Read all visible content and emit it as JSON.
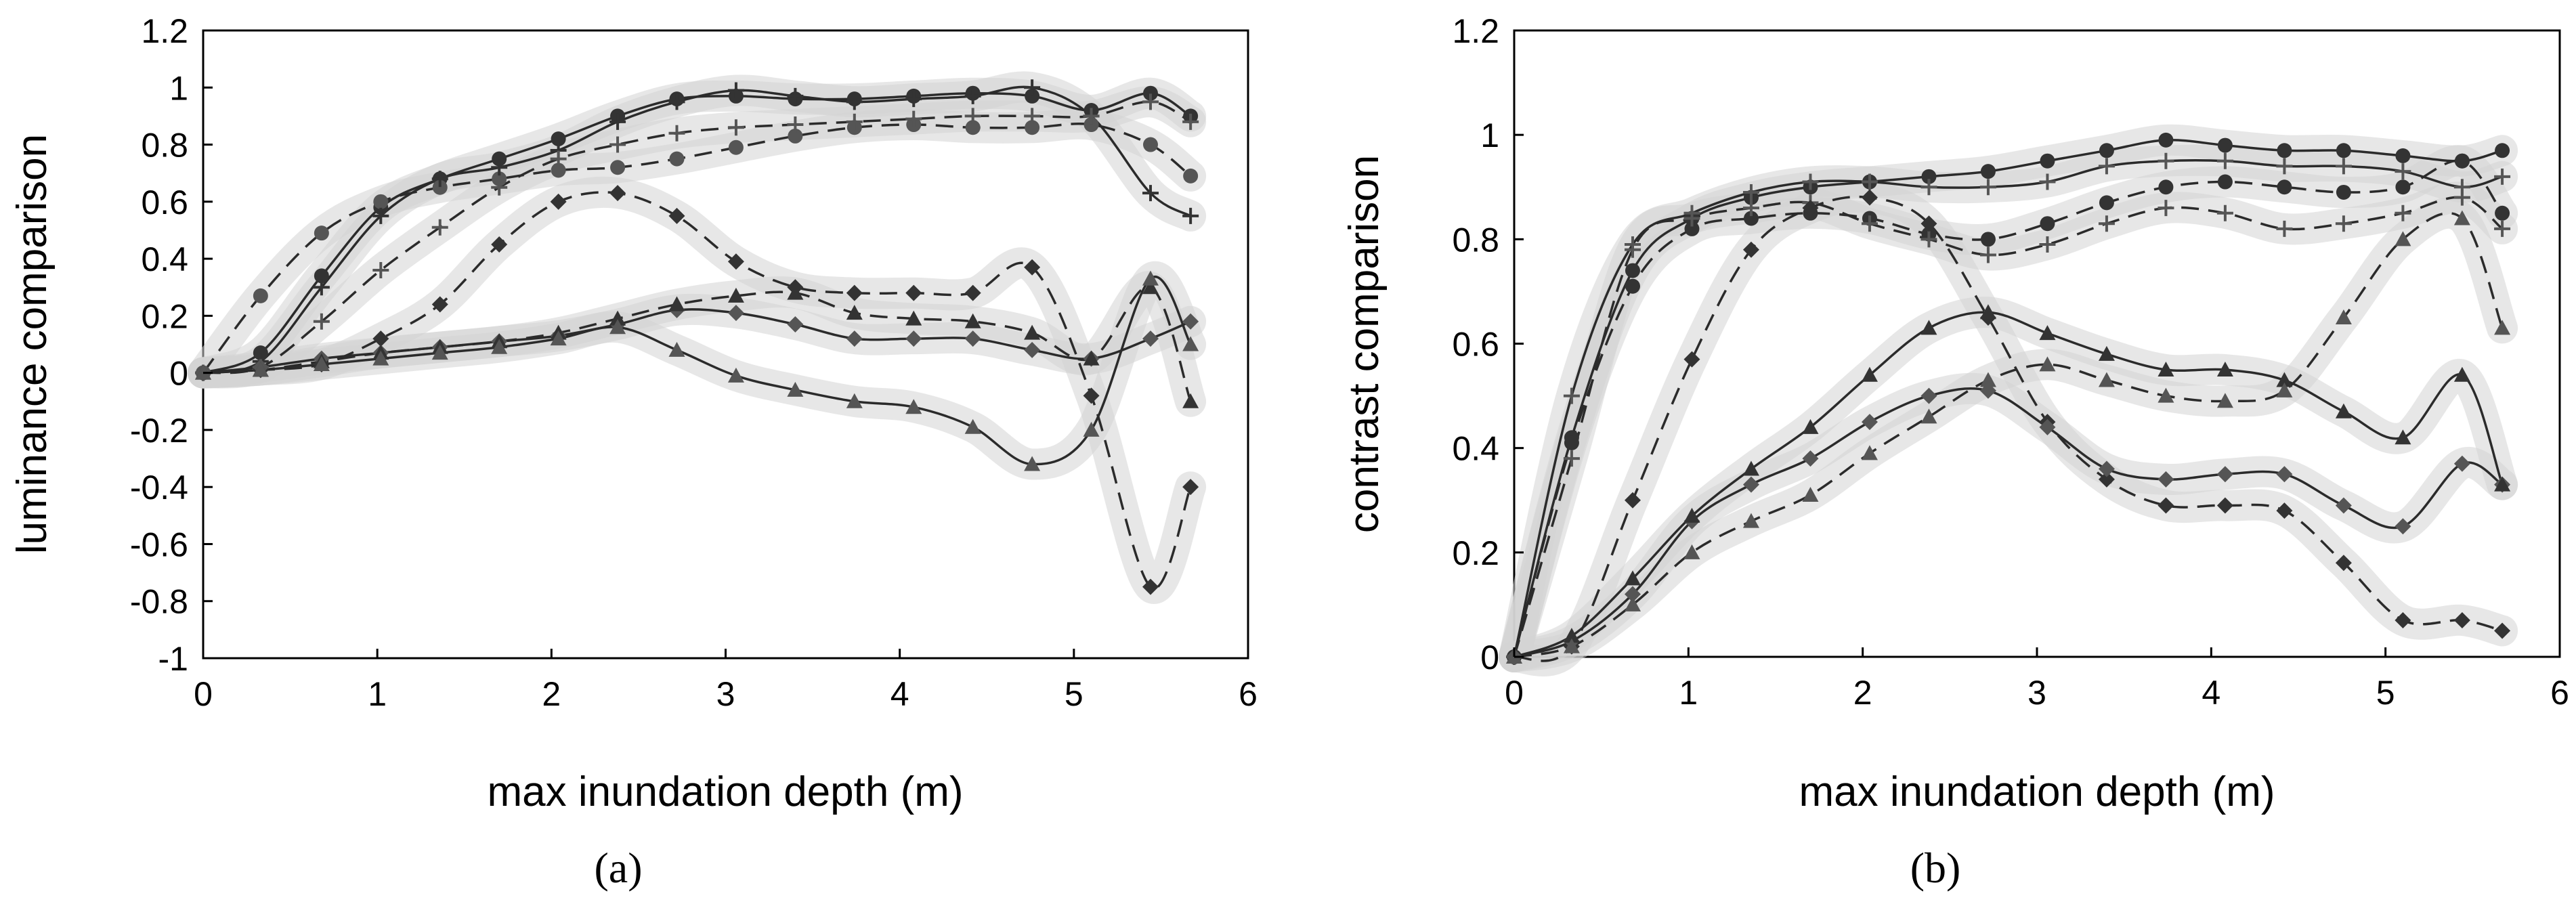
{
  "chart_data": [
    {
      "panel": "(a)",
      "type": "line",
      "title": "",
      "xlabel": "max inundation depth (m)",
      "ylabel": "luminance comparison",
      "xlim": [
        0,
        6
      ],
      "ylim": [
        -1,
        1.2
      ],
      "xticks": [
        "0",
        "1",
        "2",
        "3",
        "4",
        "5",
        "6"
      ],
      "yticks": [
        "-1",
        "-0.8",
        "-0.6",
        "-0.4",
        "-0.2",
        "0",
        "0.2",
        "0.4",
        "0.6",
        "0.8",
        "1",
        "1.2"
      ],
      "band_color": "#d3d3d3",
      "line_color": "#2b2b2b",
      "series": [
        {
          "name": "circle-solid",
          "marker": "circle",
          "dash": false,
          "x": [
            0,
            0.33,
            0.68,
            1.02,
            1.36,
            1.7,
            2.04,
            2.38,
            2.72,
            3.06,
            3.4,
            3.74,
            4.08,
            4.42,
            4.76,
            5.1,
            5.44,
            5.67
          ],
          "y": [
            0,
            0.07,
            0.34,
            0.58,
            0.68,
            0.75,
            0.82,
            0.9,
            0.96,
            0.97,
            0.96,
            0.96,
            0.97,
            0.98,
            0.97,
            0.92,
            0.98,
            0.9
          ]
        },
        {
          "name": "circle-dashed",
          "marker": "circle",
          "dash": true,
          "x": [
            0,
            0.33,
            0.68,
            1.02,
            1.36,
            1.7,
            2.04,
            2.38,
            2.72,
            3.06,
            3.4,
            3.74,
            4.08,
            4.42,
            4.76,
            5.1,
            5.44,
            5.67
          ],
          "y": [
            0,
            0.27,
            0.49,
            0.6,
            0.65,
            0.68,
            0.71,
            0.72,
            0.75,
            0.79,
            0.83,
            0.86,
            0.87,
            0.86,
            0.86,
            0.87,
            0.8,
            0.69
          ]
        },
        {
          "name": "plus-solid",
          "marker": "plus",
          "dash": false,
          "x": [
            0,
            0.33,
            0.68,
            1.02,
            1.36,
            1.7,
            2.04,
            2.38,
            2.72,
            3.06,
            3.4,
            3.74,
            4.08,
            4.42,
            4.76,
            5.1,
            5.44,
            5.67
          ],
          "y": [
            0,
            0.04,
            0.3,
            0.55,
            0.68,
            0.72,
            0.78,
            0.88,
            0.95,
            0.99,
            0.97,
            0.95,
            0.96,
            0.97,
            1.0,
            0.9,
            0.63,
            0.55
          ]
        },
        {
          "name": "plus-dashed",
          "marker": "plus",
          "dash": true,
          "x": [
            0,
            0.33,
            0.68,
            1.02,
            1.36,
            1.7,
            2.04,
            2.38,
            2.72,
            3.06,
            3.4,
            3.74,
            4.08,
            4.42,
            4.76,
            5.1,
            5.44,
            5.67
          ],
          "y": [
            0,
            0.02,
            0.18,
            0.36,
            0.51,
            0.65,
            0.75,
            0.8,
            0.84,
            0.86,
            0.87,
            0.88,
            0.89,
            0.9,
            0.9,
            0.9,
            0.95,
            0.88
          ]
        },
        {
          "name": "diamond-dashed",
          "marker": "diamond",
          "dash": true,
          "x": [
            0,
            0.33,
            0.68,
            1.02,
            1.36,
            1.7,
            2.04,
            2.38,
            2.72,
            3.06,
            3.4,
            3.74,
            4.08,
            4.42,
            4.76,
            5.1,
            5.44,
            5.67
          ],
          "y": [
            0,
            0.01,
            0.03,
            0.12,
            0.24,
            0.45,
            0.6,
            0.63,
            0.55,
            0.39,
            0.3,
            0.28,
            0.28,
            0.28,
            0.37,
            -0.08,
            -0.75,
            -0.4
          ]
        },
        {
          "name": "diamond-solid",
          "marker": "diamond",
          "dash": false,
          "x": [
            0,
            0.33,
            0.68,
            1.02,
            1.36,
            1.7,
            2.04,
            2.38,
            2.72,
            3.06,
            3.4,
            3.74,
            4.08,
            4.42,
            4.76,
            5.1,
            5.44,
            5.67
          ],
          "y": [
            0,
            0.02,
            0.05,
            0.07,
            0.09,
            0.11,
            0.13,
            0.17,
            0.22,
            0.21,
            0.17,
            0.12,
            0.12,
            0.12,
            0.08,
            0.05,
            0.12,
            0.18
          ]
        },
        {
          "name": "triangle-dashed",
          "marker": "triangle",
          "dash": true,
          "x": [
            0,
            0.33,
            0.68,
            1.02,
            1.36,
            1.7,
            2.04,
            2.38,
            2.72,
            3.06,
            3.4,
            3.74,
            4.08,
            4.42,
            4.76,
            5.1,
            5.44,
            5.67
          ],
          "y": [
            0,
            0.01,
            0.04,
            0.07,
            0.09,
            0.11,
            0.14,
            0.19,
            0.24,
            0.27,
            0.28,
            0.21,
            0.19,
            0.18,
            0.14,
            0.05,
            0.3,
            -0.1
          ]
        },
        {
          "name": "triangle-solid",
          "marker": "triangle",
          "dash": false,
          "x": [
            0,
            0.33,
            0.68,
            1.02,
            1.36,
            1.7,
            2.04,
            2.38,
            2.72,
            3.06,
            3.4,
            3.74,
            4.08,
            4.42,
            4.76,
            5.1,
            5.44,
            5.67
          ],
          "y": [
            0,
            0.01,
            0.03,
            0.05,
            0.07,
            0.09,
            0.12,
            0.16,
            0.08,
            -0.01,
            -0.06,
            -0.1,
            -0.12,
            -0.19,
            -0.32,
            -0.2,
            0.33,
            0.1
          ]
        }
      ]
    },
    {
      "panel": "(b)",
      "type": "line",
      "title": "",
      "xlabel": "max inundation depth (m)",
      "ylabel": "contrast comparison",
      "xlim": [
        0,
        6
      ],
      "ylim": [
        0,
        1.2
      ],
      "xticks": [
        "0",
        "1",
        "2",
        "3",
        "4",
        "5",
        "6"
      ],
      "yticks": [
        "0",
        "0.2",
        "0.4",
        "0.6",
        "0.8",
        "1",
        "1.2"
      ],
      "band_color": "#d3d3d3",
      "line_color": "#2b2b2b",
      "series": [
        {
          "name": "circle-solid",
          "marker": "circle",
          "dash": false,
          "x": [
            0,
            0.33,
            0.68,
            1.02,
            1.36,
            1.7,
            2.04,
            2.38,
            2.72,
            3.06,
            3.4,
            3.74,
            4.08,
            4.42,
            4.76,
            5.1,
            5.44,
            5.67
          ],
          "y": [
            0,
            0.42,
            0.74,
            0.84,
            0.88,
            0.9,
            0.91,
            0.92,
            0.93,
            0.95,
            0.97,
            0.99,
            0.98,
            0.97,
            0.97,
            0.96,
            0.95,
            0.97
          ]
        },
        {
          "name": "plus-solid",
          "marker": "plus",
          "dash": false,
          "x": [
            0,
            0.33,
            0.68,
            1.02,
            1.36,
            1.7,
            2.04,
            2.38,
            2.72,
            3.06,
            3.4,
            3.74,
            4.08,
            4.42,
            4.76,
            5.1,
            5.44,
            5.67
          ],
          "y": [
            0,
            0.5,
            0.79,
            0.85,
            0.89,
            0.91,
            0.91,
            0.9,
            0.9,
            0.91,
            0.94,
            0.95,
            0.95,
            0.94,
            0.94,
            0.93,
            0.9,
            0.92
          ]
        },
        {
          "name": "circle-dashed",
          "marker": "circle",
          "dash": true,
          "x": [
            0,
            0.33,
            0.68,
            1.02,
            1.36,
            1.7,
            2.04,
            2.38,
            2.72,
            3.06,
            3.4,
            3.74,
            4.08,
            4.42,
            4.76,
            5.1,
            5.44,
            5.67
          ],
          "y": [
            0,
            0.41,
            0.71,
            0.82,
            0.84,
            0.85,
            0.84,
            0.81,
            0.8,
            0.83,
            0.87,
            0.9,
            0.91,
            0.9,
            0.89,
            0.9,
            0.95,
            0.85
          ]
        },
        {
          "name": "plus-dashed",
          "marker": "plus",
          "dash": true,
          "x": [
            0,
            0.33,
            0.68,
            1.02,
            1.36,
            1.7,
            2.04,
            2.38,
            2.72,
            3.06,
            3.4,
            3.74,
            4.08,
            4.42,
            4.76,
            5.1,
            5.44,
            5.67
          ],
          "y": [
            0,
            0.38,
            0.78,
            0.84,
            0.86,
            0.87,
            0.83,
            0.8,
            0.77,
            0.79,
            0.83,
            0.86,
            0.85,
            0.82,
            0.83,
            0.85,
            0.88,
            0.82
          ]
        },
        {
          "name": "diamond-dashed",
          "marker": "diamond",
          "dash": true,
          "x": [
            0,
            0.33,
            0.68,
            1.02,
            1.36,
            1.7,
            2.04,
            2.38,
            2.72,
            3.06,
            3.4,
            3.74,
            4.08,
            4.42,
            4.76,
            5.1,
            5.44,
            5.67
          ],
          "y": [
            0,
            0.02,
            0.3,
            0.57,
            0.78,
            0.86,
            0.88,
            0.83,
            0.65,
            0.45,
            0.34,
            0.29,
            0.29,
            0.28,
            0.18,
            0.07,
            0.07,
            0.05
          ]
        },
        {
          "name": "diamond-solid",
          "marker": "diamond",
          "dash": false,
          "x": [
            0,
            0.33,
            0.68,
            1.02,
            1.36,
            1.7,
            2.04,
            2.38,
            2.72,
            3.06,
            3.4,
            3.74,
            4.08,
            4.42,
            4.76,
            5.1,
            5.44,
            5.67
          ],
          "y": [
            0,
            0.03,
            0.12,
            0.26,
            0.33,
            0.38,
            0.45,
            0.5,
            0.51,
            0.44,
            0.36,
            0.34,
            0.35,
            0.35,
            0.29,
            0.25,
            0.37,
            0.33
          ]
        },
        {
          "name": "triangle-solid",
          "marker": "triangle",
          "dash": false,
          "x": [
            0,
            0.33,
            0.68,
            1.02,
            1.36,
            1.7,
            2.04,
            2.38,
            2.72,
            3.06,
            3.4,
            3.74,
            4.08,
            4.42,
            4.76,
            5.1,
            5.44,
            5.67
          ],
          "y": [
            0,
            0.04,
            0.15,
            0.27,
            0.36,
            0.44,
            0.54,
            0.63,
            0.66,
            0.62,
            0.58,
            0.55,
            0.55,
            0.53,
            0.47,
            0.42,
            0.54,
            0.33
          ]
        },
        {
          "name": "triangle-dashed",
          "marker": "triangle",
          "dash": true,
          "x": [
            0,
            0.33,
            0.68,
            1.02,
            1.36,
            1.7,
            2.04,
            2.38,
            2.72,
            3.06,
            3.4,
            3.74,
            4.08,
            4.42,
            4.76,
            5.1,
            5.44,
            5.67
          ],
          "y": [
            0,
            0.02,
            0.1,
            0.2,
            0.26,
            0.31,
            0.39,
            0.46,
            0.53,
            0.56,
            0.53,
            0.5,
            0.49,
            0.51,
            0.65,
            0.8,
            0.84,
            0.63
          ]
        }
      ]
    }
  ]
}
